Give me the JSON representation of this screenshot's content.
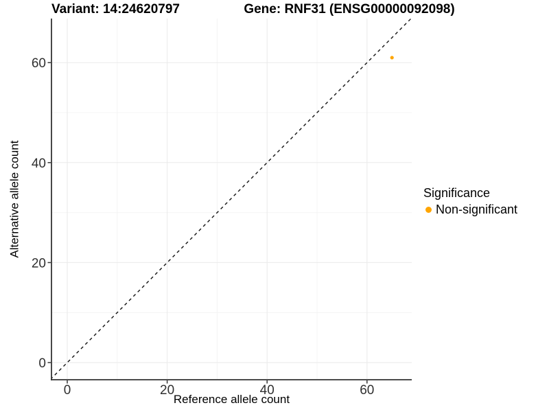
{
  "chart_data": {
    "type": "scatter",
    "title_left": "Variant: 14:24620797",
    "title_right": "Gene: RNF31 (ENSG00000092098)",
    "xlabel": "Reference allele count",
    "ylabel": "Alternative allele count",
    "xlim": [
      -3.2,
      69.0
    ],
    "ylim": [
      -3.4,
      68.8
    ],
    "x_ticks": [
      0,
      20,
      40,
      60
    ],
    "y_ticks": [
      0,
      20,
      40,
      60
    ],
    "x_minor_ticks": [
      10,
      30,
      50
    ],
    "y_minor_ticks": [
      10,
      30,
      50
    ],
    "grid": "on",
    "identity_line": {
      "slope": 1,
      "intercept": 0,
      "style": "dashed",
      "color": "#111111"
    },
    "series": [
      {
        "name": "Non-significant",
        "color": "#FFA500",
        "points": [
          {
            "x": 65,
            "y": 61
          }
        ]
      }
    ],
    "legend": {
      "title": "Significance",
      "position": "right",
      "entries": [
        {
          "label": "Non-significant",
          "color": "#FFA500"
        }
      ]
    }
  },
  "colors": {
    "point": "#FFA500",
    "grid_major": "#EAEAEA",
    "grid_minor": "#F4F4F4",
    "axis_line": "#333333",
    "tick_mark": "#333333",
    "tick_label": "#303030",
    "text": "#000000"
  }
}
